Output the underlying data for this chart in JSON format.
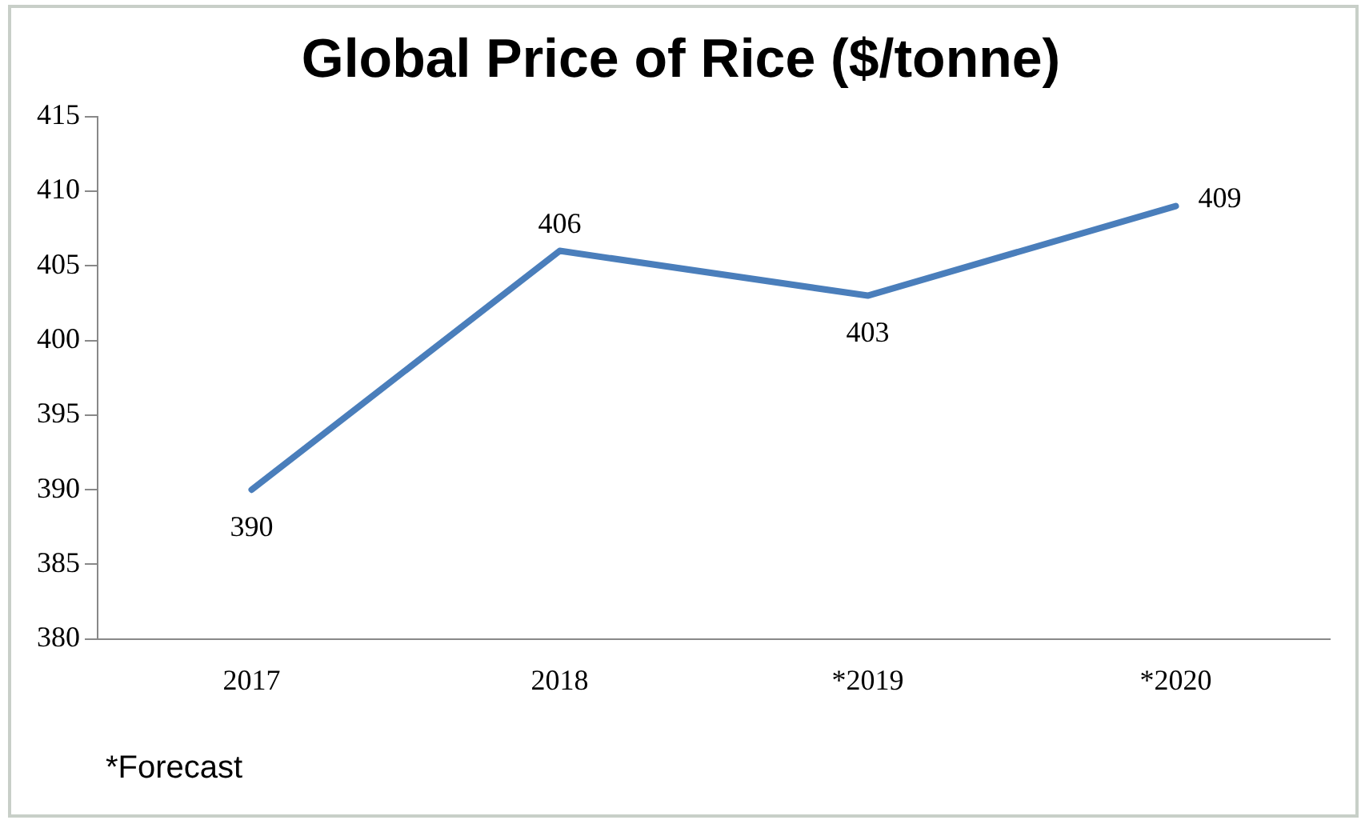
{
  "chart_data": {
    "type": "line",
    "title": "Global Price of Rice ($/tonne)",
    "categories": [
      "2017",
      "2018",
      "*2019",
      "*2020"
    ],
    "values": [
      390,
      406,
      403,
      409
    ],
    "color": "#4a7ebb",
    "ylim": [
      380,
      415
    ],
    "yticks": [
      380,
      385,
      390,
      395,
      400,
      405,
      410,
      415
    ],
    "grid": false,
    "legend": false,
    "marker": "none",
    "line_style": "solid",
    "data_labels": true,
    "annotations": [
      "*Forecast"
    ]
  }
}
